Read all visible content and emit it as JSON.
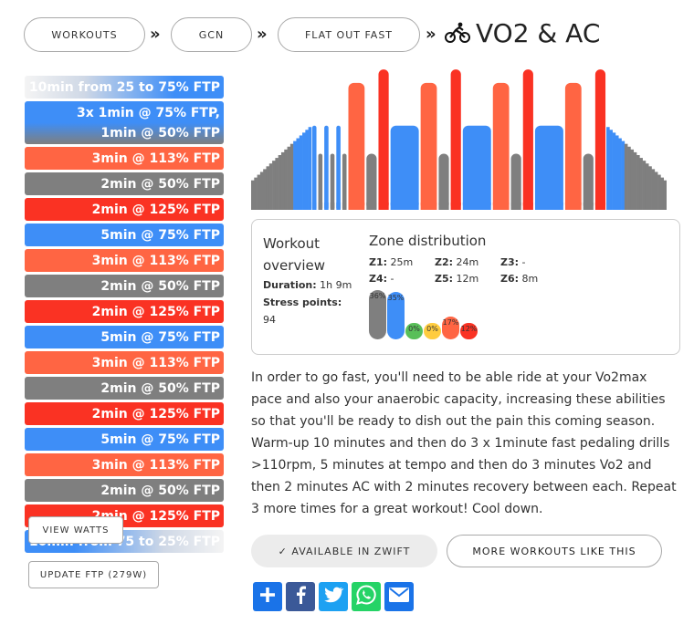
{
  "breadcrumb": {
    "items": [
      "WORKOUTS",
      "GCN",
      "FLAT OUT FAST"
    ],
    "separator": "»",
    "title": "VO2 & AC"
  },
  "segments": [
    {
      "lines": [
        "10min from 25 to 75% FTP"
      ],
      "zone": "ramp-up"
    },
    {
      "lines": [
        "3x 1min @ 75% FTP,",
        "1min @ 50% FTP"
      ],
      "zone": "blue-gray"
    },
    {
      "lines": [
        "3min @ 113% FTP"
      ],
      "zone": "z5"
    },
    {
      "lines": [
        "2min @ 50% FTP"
      ],
      "zone": "z1"
    },
    {
      "lines": [
        "2min @ 125% FTP"
      ],
      "zone": "z6"
    },
    {
      "lines": [
        "5min @ 75% FTP"
      ],
      "zone": "z2"
    },
    {
      "lines": [
        "3min @ 113% FTP"
      ],
      "zone": "z5"
    },
    {
      "lines": [
        "2min @ 50% FTP"
      ],
      "zone": "z1"
    },
    {
      "lines": [
        "2min @ 125% FTP"
      ],
      "zone": "z6"
    },
    {
      "lines": [
        "5min @ 75% FTP"
      ],
      "zone": "z2"
    },
    {
      "lines": [
        "3min @ 113% FTP"
      ],
      "zone": "z5"
    },
    {
      "lines": [
        "2min @ 50% FTP"
      ],
      "zone": "z1"
    },
    {
      "lines": [
        "2min @ 125% FTP"
      ],
      "zone": "z6"
    },
    {
      "lines": [
        "5min @ 75% FTP"
      ],
      "zone": "z2"
    },
    {
      "lines": [
        "3min @ 113% FTP"
      ],
      "zone": "z5"
    },
    {
      "lines": [
        "2min @ 50% FTP"
      ],
      "zone": "z1"
    },
    {
      "lines": [
        "2min @ 125% FTP"
      ],
      "zone": "z6"
    },
    {
      "lines": [
        "10min from 75 to 25% FTP"
      ],
      "zone": "ramp-down"
    }
  ],
  "buttons": {
    "view_watts": "VIEW WATTS",
    "update_ftp": "UPDATE FTP (279W)",
    "available_zwift": "✓ AVAILABLE IN ZWIFT",
    "more_workouts": "MORE WORKOUTS LIKE THIS"
  },
  "overview": {
    "heading": "Workout overview",
    "duration_label": "Duration:",
    "duration_value": "1h 9m",
    "stress_label": "Stress points:",
    "stress_value": "94"
  },
  "zones": {
    "heading": "Zone distribution",
    "items": [
      {
        "label": "Z1:",
        "value": "25m"
      },
      {
        "label": "Z2:",
        "value": "24m"
      },
      {
        "label": "Z3:",
        "value": "-"
      },
      {
        "label": "Z4:",
        "value": "-"
      },
      {
        "label": "Z5:",
        "value": "12m"
      },
      {
        "label": "Z6:",
        "value": "8m"
      }
    ],
    "percentages": [
      {
        "label": "36%",
        "value": 36,
        "color": "#7f7f7f"
      },
      {
        "label": "35%",
        "value": 35,
        "color": "#3e8ef7"
      },
      {
        "label": "0%",
        "value": 0,
        "color": "#59bf59"
      },
      {
        "label": "0%",
        "value": 0,
        "color": "#ffcc3f"
      },
      {
        "label": "17%",
        "value": 17,
        "color": "#ff6543"
      },
      {
        "label": "12%",
        "value": 12,
        "color": "#fa3223"
      }
    ]
  },
  "description": "In order to go fast, you'll need to be able ride at your Vo2max pace and also your anaerobic capacity, increasing these abilities so that you'll be ready to dish out the pain this coming season. Warm-up 10 minutes and then do 3 x 1minute fast pedaling drills >110rpm, 5 minutes at tempo and then do 3 minutes Vo2 and then 2 minutes AC with 2 minutes recovery between each. Repeat 3 more times for a great workout! Cool down.",
  "share": [
    {
      "name": "add",
      "color": "#1a73e8",
      "glyph": "+"
    },
    {
      "name": "facebook",
      "color": "#3b5998",
      "glyph": "f"
    },
    {
      "name": "twitter",
      "color": "#1da1f2",
      "glyph": "bird"
    },
    {
      "name": "whatsapp",
      "color": "#25d366",
      "glyph": "phone"
    },
    {
      "name": "email",
      "color": "#1a73e8",
      "glyph": "envelope"
    }
  ],
  "profile": {
    "blocks": [
      {
        "kind": "ramp",
        "minutes": 10,
        "from": 25,
        "to": 75
      },
      {
        "kind": "block",
        "minutes": 1,
        "power": 75
      },
      {
        "kind": "block",
        "minutes": 1,
        "power": 50
      },
      {
        "kind": "block",
        "minutes": 1,
        "power": 75
      },
      {
        "kind": "block",
        "minutes": 1,
        "power": 50
      },
      {
        "kind": "block",
        "minutes": 1,
        "power": 75
      },
      {
        "kind": "block",
        "minutes": 1,
        "power": 50
      },
      {
        "kind": "block",
        "minutes": 3,
        "power": 113
      },
      {
        "kind": "block",
        "minutes": 2,
        "power": 50
      },
      {
        "kind": "block",
        "minutes": 2,
        "power": 125
      },
      {
        "kind": "block",
        "minutes": 5,
        "power": 75
      },
      {
        "kind": "block",
        "minutes": 3,
        "power": 113
      },
      {
        "kind": "block",
        "minutes": 2,
        "power": 50
      },
      {
        "kind": "block",
        "minutes": 2,
        "power": 125
      },
      {
        "kind": "block",
        "minutes": 5,
        "power": 75
      },
      {
        "kind": "block",
        "minutes": 3,
        "power": 113
      },
      {
        "kind": "block",
        "minutes": 2,
        "power": 50
      },
      {
        "kind": "block",
        "minutes": 2,
        "power": 125
      },
      {
        "kind": "block",
        "minutes": 5,
        "power": 75
      },
      {
        "kind": "block",
        "minutes": 3,
        "power": 113
      },
      {
        "kind": "block",
        "minutes": 2,
        "power": 50
      },
      {
        "kind": "block",
        "minutes": 2,
        "power": 125
      },
      {
        "kind": "ramp",
        "minutes": 10,
        "from": 75,
        "to": 25
      }
    ],
    "max_power": 130
  },
  "colors": {
    "z1": "#7f7f7f",
    "z2": "#3e8ef7",
    "z5": "#ff6543",
    "z6": "#fa3223"
  }
}
